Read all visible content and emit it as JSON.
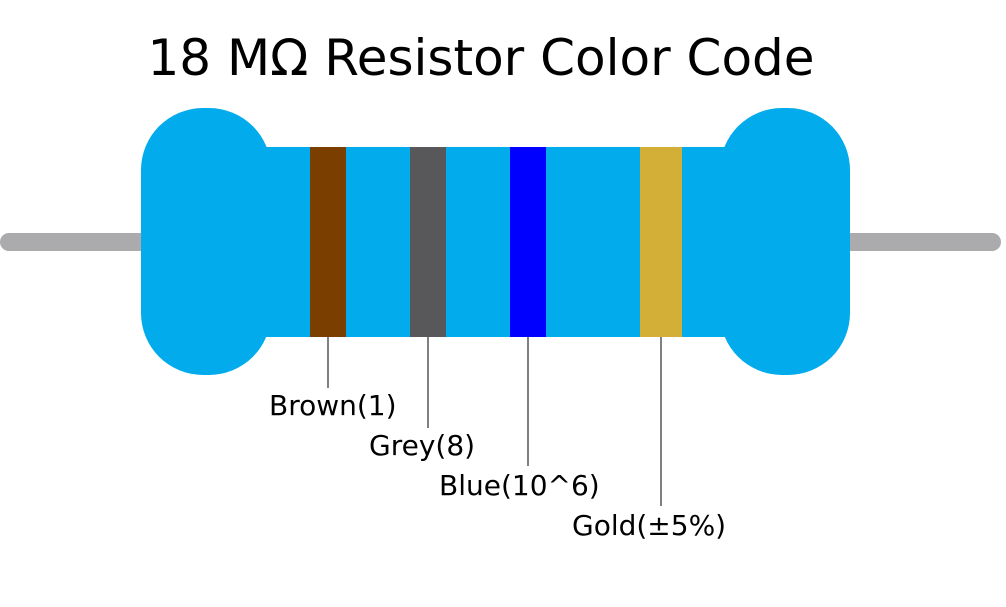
{
  "title": "18 MΩ Resistor Color Code",
  "body_color": "#02ACEC",
  "lead_color": "#ABABAD",
  "bands": [
    {
      "name": "Brown",
      "color": "#7A3F00",
      "label": "Brown(1)"
    },
    {
      "name": "Grey",
      "color": "#58575A",
      "label": "Grey(8)"
    },
    {
      "name": "Blue",
      "color": "#0000FF",
      "label": "Blue(10^6)"
    },
    {
      "name": "Gold",
      "color": "#D4AF37",
      "label": "Gold(±5%)"
    }
  ]
}
